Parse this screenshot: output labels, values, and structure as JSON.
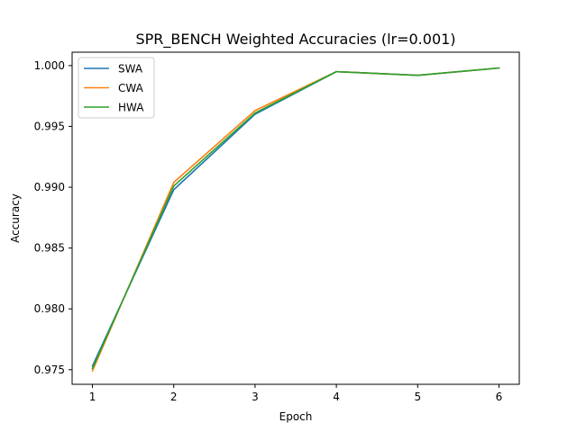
{
  "chart_data": {
    "type": "line",
    "title": "SPR_BENCH Weighted Accuracies (lr=0.001)",
    "xlabel": "Epoch",
    "ylabel": "Accuracy",
    "x": [
      1,
      2,
      3,
      4,
      5,
      6
    ],
    "xticks": [
      "1",
      "2",
      "3",
      "4",
      "5",
      "6"
    ],
    "yticks": [
      "0.975",
      "0.980",
      "0.985",
      "0.990",
      "0.995",
      "1.000"
    ],
    "xlim": [
      0.75,
      6.25
    ],
    "ylim": [
      0.9738,
      1.0011
    ],
    "grid": false,
    "legend_position": "upper-left",
    "series": [
      {
        "name": "SWA",
        "color": "#1f77b4",
        "values": [
          0.9753,
          0.9898,
          0.996,
          0.9995,
          0.9992,
          0.9998
        ]
      },
      {
        "name": "CWA",
        "color": "#ff7f0e",
        "values": [
          0.9749,
          0.9904,
          0.9963,
          0.9995,
          0.9992,
          0.9998
        ]
      },
      {
        "name": "HWA",
        "color": "#2ca02c",
        "values": [
          0.9751,
          0.9901,
          0.9961,
          0.9995,
          0.9992,
          0.9998
        ]
      }
    ]
  }
}
